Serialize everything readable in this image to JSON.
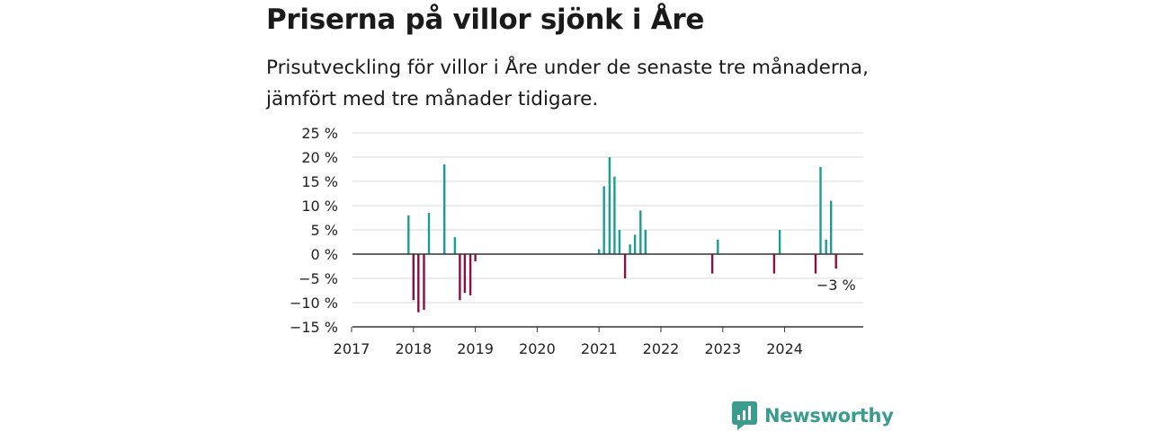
{
  "header": {
    "title": "Priserna på villor sjönk i Åre",
    "subtitle": "Prisutveckling för villor i Åre under de senaste tre månaderna, jämfört med tre månader tidigare."
  },
  "brand": {
    "name": "Newsworthy"
  },
  "colors": {
    "positive": "#1a9e92",
    "negative": "#8b0f43",
    "grid": "#d9d9d9",
    "axis": "#333333",
    "logo": "#3a9c8d"
  },
  "chart_data": {
    "type": "bar",
    "ylim": [
      -15,
      25
    ],
    "xlim": [
      2017,
      2025
    ],
    "y_ticks": [
      25,
      20,
      15,
      10,
      5,
      0,
      -5,
      -10,
      -15
    ],
    "y_tick_labels": [
      "25 %",
      "20 %",
      "15 %",
      "10 %",
      "5 %",
      "0 %",
      "−5 %",
      "−10 %",
      "−15 %"
    ],
    "x_ticks": [
      "2017",
      "2018",
      "2019",
      "2020",
      "2021",
      "2022",
      "2023",
      "2024"
    ],
    "grid": true,
    "points": [
      {
        "x": 2017.92,
        "y": 8
      },
      {
        "x": 2018.0,
        "y": -9.5
      },
      {
        "x": 2018.08,
        "y": -12
      },
      {
        "x": 2018.17,
        "y": -11.5
      },
      {
        "x": 2018.25,
        "y": 8.5
      },
      {
        "x": 2018.5,
        "y": 18.5
      },
      {
        "x": 2018.67,
        "y": 3.5
      },
      {
        "x": 2018.75,
        "y": -9.5
      },
      {
        "x": 2018.83,
        "y": -8
      },
      {
        "x": 2018.92,
        "y": -8.5
      },
      {
        "x": 2019.0,
        "y": -1.5
      },
      {
        "x": 2021.0,
        "y": 1
      },
      {
        "x": 2021.08,
        "y": 14
      },
      {
        "x": 2021.17,
        "y": 20
      },
      {
        "x": 2021.25,
        "y": 16
      },
      {
        "x": 2021.33,
        "y": 5
      },
      {
        "x": 2021.42,
        "y": -5
      },
      {
        "x": 2021.5,
        "y": 2
      },
      {
        "x": 2021.58,
        "y": 4
      },
      {
        "x": 2021.67,
        "y": 9
      },
      {
        "x": 2021.75,
        "y": 5
      },
      {
        "x": 2022.83,
        "y": -4
      },
      {
        "x": 2022.92,
        "y": 3
      },
      {
        "x": 2023.83,
        "y": -4
      },
      {
        "x": 2023.92,
        "y": 5
      },
      {
        "x": 2024.5,
        "y": -4
      },
      {
        "x": 2024.58,
        "y": 18
      },
      {
        "x": 2024.67,
        "y": 3
      },
      {
        "x": 2024.75,
        "y": 11
      },
      {
        "x": 2024.83,
        "y": -3
      }
    ],
    "annotation": {
      "x": 2024.83,
      "y": -3,
      "text": "−3 %"
    }
  }
}
